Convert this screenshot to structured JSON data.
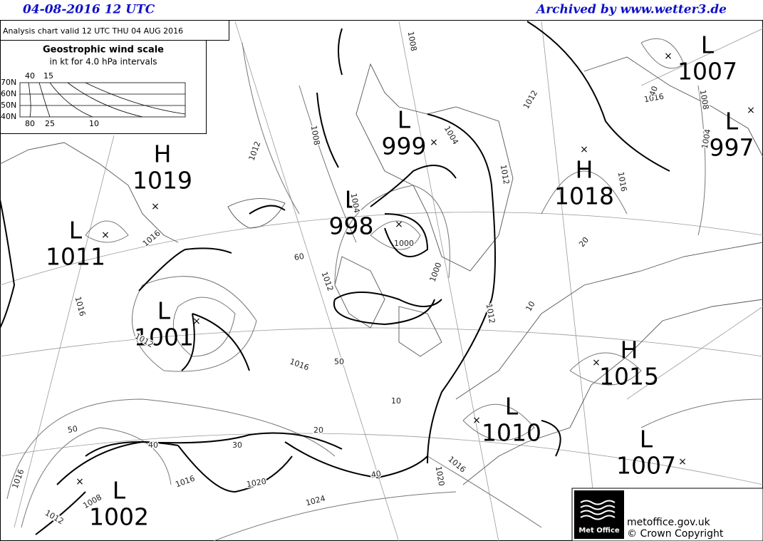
{
  "header": {
    "date": "04-08-2016  12 UTC",
    "archive": "Archived by www.wetter3.de",
    "analysis": "Analysis chart  valid 12 UTC THU 04  AUG 2016"
  },
  "wind_scale": {
    "title": "Geostrophic wind scale",
    "subtitle": "in kt for 4.0 hPa intervals",
    "latitudes": [
      "70N",
      "60N",
      "50N",
      "40N"
    ],
    "top_labels": [
      "40",
      "15"
    ],
    "bottom_labels": [
      "80",
      "25",
      "10"
    ]
  },
  "centres": [
    {
      "kind": "H",
      "pressure": "1019"
    },
    {
      "kind": "L",
      "pressure": "1011"
    },
    {
      "kind": "L",
      "pressure": "1001"
    },
    {
      "kind": "L",
      "pressure": "999"
    },
    {
      "kind": "L",
      "pressure": "998"
    },
    {
      "kind": "L",
      "pressure": "1007"
    },
    {
      "kind": "L",
      "pressure": "997"
    },
    {
      "kind": "H",
      "pressure": "1018"
    },
    {
      "kind": "H",
      "pressure": "1015"
    },
    {
      "kind": "L",
      "pressure": "1010"
    },
    {
      "kind": "L",
      "pressure": "1007"
    },
    {
      "kind": "L",
      "pressure": "1002"
    }
  ],
  "isobar_labels": [
    "1008",
    "1008",
    "1012",
    "1016",
    "1016",
    "1016",
    "1012",
    "1004",
    "1000",
    "1012",
    "1004",
    "1000",
    "1012",
    "1012",
    "1016",
    "1008",
    "1004",
    "1016",
    "1012",
    "1016",
    "1020",
    "1012",
    "1016",
    "1020",
    "1024",
    "1008",
    "1012",
    "1016",
    "60",
    "50",
    "10",
    "50",
    "40",
    "30",
    "20",
    "40",
    "10",
    "20",
    "40"
  ],
  "logo": {
    "name": "Met Office",
    "url": "metoffice.gov.uk",
    "copyright": "© Crown Copyright"
  }
}
